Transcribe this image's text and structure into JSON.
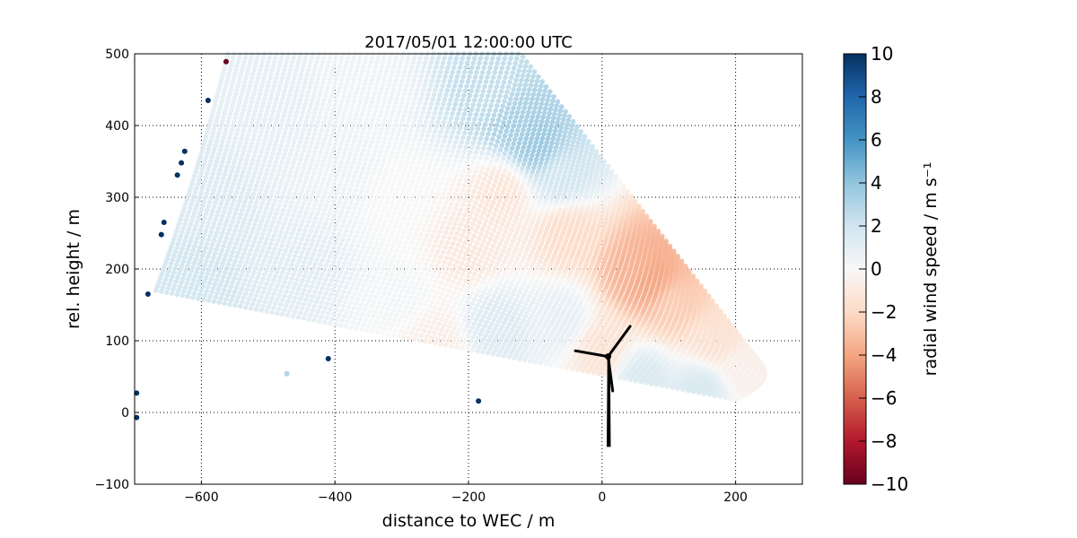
{
  "chart_data": {
    "type": "scatter",
    "title": "2017/05/01 12:00:00 UTC",
    "xlabel": "distance to WEC / m",
    "ylabel": "rel. height / m",
    "xlim": [
      -700,
      300
    ],
    "ylim": [
      -100,
      500
    ],
    "xticks": [
      "−600",
      "−400",
      "−200",
      "0",
      "200"
    ],
    "xtick_values": [
      -600,
      -400,
      -200,
      0,
      200
    ],
    "yticks": [
      "−100",
      "0",
      "100",
      "200",
      "300",
      "400",
      "500"
    ],
    "ytick_values": [
      -100,
      0,
      100,
      200,
      300,
      400,
      500
    ],
    "grid": true,
    "colormap": "RdBu",
    "colorbar": {
      "label": "radial wind speed / m s⁻¹",
      "range": [
        -10,
        10
      ],
      "ticks": [
        "−10",
        "−8",
        "−6",
        "−4",
        "−2",
        "0",
        "2",
        "4",
        "6",
        "8",
        "10"
      ],
      "tick_values": [
        -10,
        -8,
        -6,
        -4,
        -2,
        0,
        2,
        4,
        6,
        8,
        10
      ]
    },
    "field_samples": [
      {
        "x": -600,
        "y": 300,
        "v": 1.5
      },
      {
        "x": -620,
        "y": 180,
        "v": 2
      },
      {
        "x": -500,
        "y": 420,
        "v": 1
      },
      {
        "x": -450,
        "y": 200,
        "v": 1.2
      },
      {
        "x": -350,
        "y": 450,
        "v": 0.4
      },
      {
        "x": -300,
        "y": 300,
        "v": 0
      },
      {
        "x": -130,
        "y": 400,
        "v": 3.5
      },
      {
        "x": -100,
        "y": 370,
        "v": 4
      },
      {
        "x": -170,
        "y": 450,
        "v": 2.5
      },
      {
        "x": -60,
        "y": 330,
        "v": 2
      },
      {
        "x": -150,
        "y": 310,
        "v": -1.5
      },
      {
        "x": -50,
        "y": 250,
        "v": -2
      },
      {
        "x": 50,
        "y": 200,
        "v": -3.5
      },
      {
        "x": 70,
        "y": 185,
        "v": -4
      },
      {
        "x": 110,
        "y": 150,
        "v": -2.5
      },
      {
        "x": 170,
        "y": 100,
        "v": -1.5
      },
      {
        "x": -160,
        "y": 120,
        "v": 1.5
      },
      {
        "x": -60,
        "y": 130,
        "v": 1
      },
      {
        "x": 60,
        "y": 50,
        "v": 1.5
      },
      {
        "x": 150,
        "y": 35,
        "v": 1.5
      },
      {
        "x": -300,
        "y": 160,
        "v": 0.3
      },
      {
        "x": -250,
        "y": 100,
        "v": -0.8
      },
      {
        "x": 210,
        "y": 65,
        "v": -0.5
      },
      {
        "x": -200,
        "y": 230,
        "v": -1.2
      },
      {
        "x": 0,
        "y": 90,
        "v": -1.5
      },
      {
        "x": -400,
        "y": 330,
        "v": 0.6
      }
    ],
    "isolated_points": [
      {
        "x": -563,
        "y": 489,
        "v": -10
      },
      {
        "x": -590,
        "y": 435,
        "v": 10
      },
      {
        "x": -625,
        "y": 364,
        "v": 10
      },
      {
        "x": -630,
        "y": 348,
        "v": 10
      },
      {
        "x": -636,
        "y": 331,
        "v": 10
      },
      {
        "x": -656,
        "y": 265,
        "v": 10
      },
      {
        "x": -660,
        "y": 248,
        "v": 10
      },
      {
        "x": -680,
        "y": 165,
        "v": 10
      },
      {
        "x": -697,
        "y": 27,
        "v": 10
      },
      {
        "x": -697,
        "y": -7,
        "v": 10
      },
      {
        "x": -410,
        "y": 75,
        "v": 10
      },
      {
        "x": -185,
        "y": 16,
        "v": 10
      },
      {
        "x": -472,
        "y": 54,
        "v": 3
      }
    ],
    "annotation": "wind turbine silhouette at x = 0"
  }
}
